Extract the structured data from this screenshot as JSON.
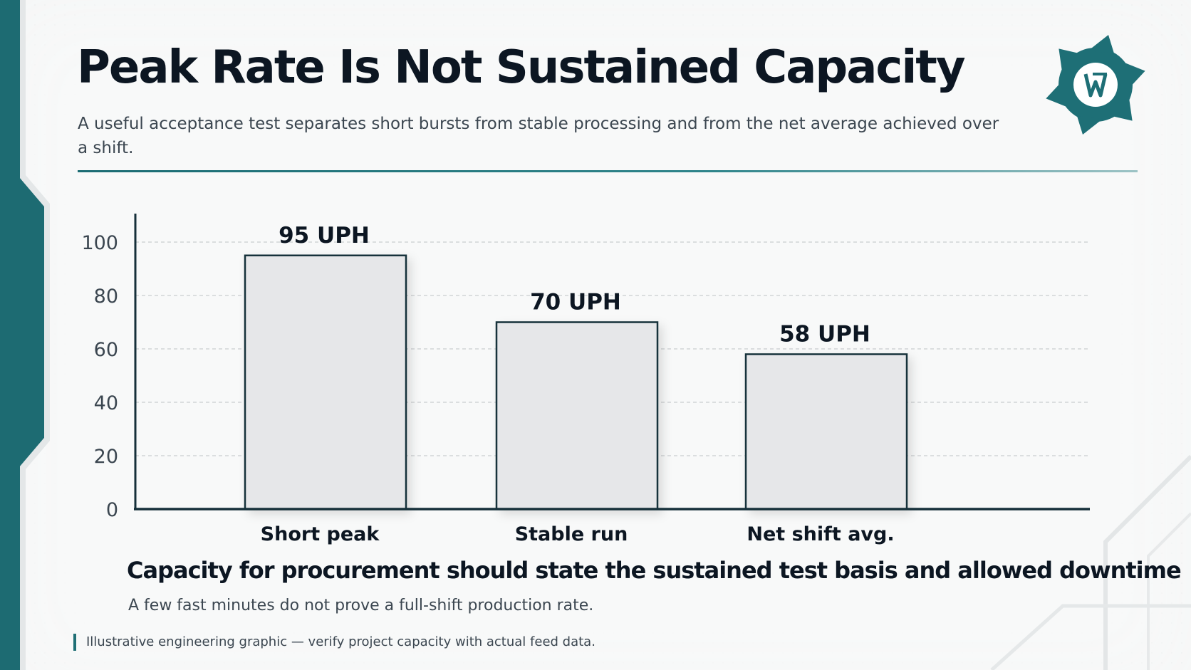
{
  "title": "Peak Rate Is Not Sustained Capacity",
  "subtitle": "A useful acceptance test separates short bursts from stable processing and from the net average achieved over a shift.",
  "takeaway": "Capacity for procurement should state the sustained test basis and allowed downtime",
  "takeaway_sub": "A few fast minutes do not prove a full-shift production rate.",
  "footnote": "Illustrative engineering graphic — verify project capacity with actual feed data.",
  "logo": {
    "icon": "gear-logo-icon",
    "color": "#1e6f76"
  },
  "colors": {
    "accent": "#1f6f75",
    "bar_fill": "#e6e7e9",
    "bar_stroke": "#16303a",
    "text_dark": "#0c1622"
  },
  "chart_data": {
    "type": "bar",
    "categories": [
      "Short peak",
      "Stable run",
      "Net shift avg."
    ],
    "values": [
      95,
      70,
      58
    ],
    "data_labels": [
      "95 UPH",
      "70 UPH",
      "58 UPH"
    ],
    "yticks": [
      0,
      20,
      40,
      60,
      80,
      100
    ],
    "ylim": [
      0,
      100
    ],
    "grid": true,
    "xlabel": "",
    "ylabel": ""
  }
}
